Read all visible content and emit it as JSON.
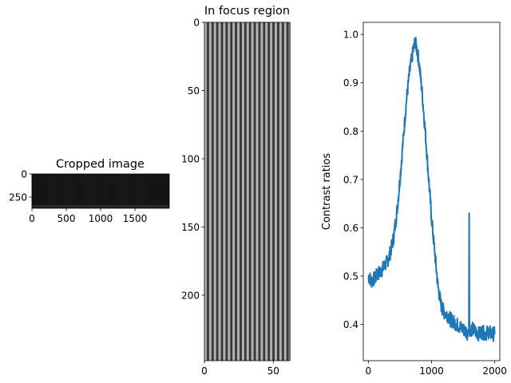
{
  "chart_data": [
    {
      "type": "heatmap",
      "title": "Cropped image",
      "xticks": [
        "0",
        "500",
        "1000",
        "1500"
      ],
      "yticks": [
        "0",
        "250"
      ],
      "xlim": [
        0,
        2000
      ],
      "ylim": [
        0,
        370
      ],
      "colormap": "gray",
      "background_color": "#141414",
      "stripe_color": "#1e1e1e"
    },
    {
      "type": "heatmap",
      "title": "In focus region",
      "xticks": [
        "0",
        "50"
      ],
      "yticks": [
        "0",
        "50",
        "100",
        "150",
        "200"
      ],
      "xlim": [
        0,
        62
      ],
      "ylim": [
        0,
        248
      ],
      "colormap": "gray",
      "stripe_period": 3.4,
      "stripe_light": "#c8c8c8",
      "stripe_dark": "#3a3a3a"
    },
    {
      "type": "line",
      "title": "",
      "xlabel": "",
      "ylabel": "Contrast ratios",
      "xlim": [
        -80,
        2080
      ],
      "ylim": [
        0.325,
        1.025
      ],
      "xticks": [
        "0",
        "1000",
        "2000"
      ],
      "yticks": [
        "0.4",
        "0.5",
        "0.6",
        "0.7",
        "0.8",
        "0.9",
        "1.0"
      ],
      "line_color": "#1f77b4",
      "series": [
        {
          "x": [
            0,
            50,
            100,
            150,
            200,
            250,
            300,
            350,
            400,
            450,
            500,
            550,
            600,
            650,
            700,
            740,
            760,
            800,
            850,
            900,
            950,
            1000,
            1050,
            1100,
            1150,
            1200,
            1250,
            1300,
            1350,
            1400,
            1450,
            1500,
            1550,
            1580,
            1590,
            1595,
            1600,
            1605,
            1610,
            1650,
            1700,
            1750,
            1800,
            1850,
            1900,
            1950,
            2000
          ],
          "values": [
            0.5,
            0.49,
            0.495,
            0.505,
            0.51,
            0.52,
            0.53,
            0.55,
            0.58,
            0.63,
            0.7,
            0.78,
            0.86,
            0.92,
            0.96,
            0.985,
            0.975,
            0.945,
            0.88,
            0.8,
            0.71,
            0.62,
            0.55,
            0.48,
            0.44,
            0.425,
            0.42,
            0.41,
            0.405,
            0.4,
            0.395,
            0.39,
            0.385,
            0.38,
            0.39,
            0.63,
            0.39,
            0.385,
            0.39,
            0.39,
            0.385,
            0.38,
            0.385,
            0.38,
            0.385,
            0.38,
            0.38
          ]
        }
      ]
    }
  ]
}
